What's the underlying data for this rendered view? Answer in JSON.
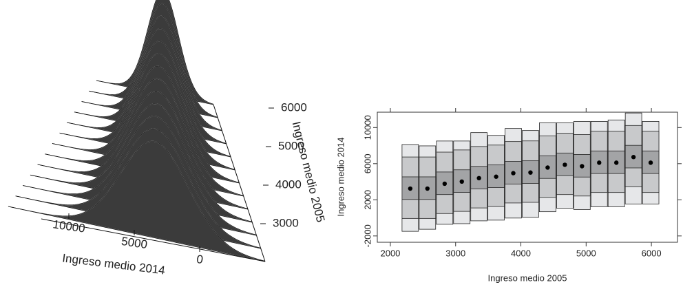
{
  "chart_data": [
    {
      "type": "ridge3d",
      "xlabel": "Ingreso medio 2014",
      "ylabel": "Ingreso medio 2005",
      "xticks": [
        10000,
        5000,
        0
      ],
      "yticks": [
        3000,
        4000,
        5000,
        6000
      ]
    },
    {
      "type": "box",
      "xlabel": "Ingreso medio 2005",
      "ylabel": "Ingreso medio 2014",
      "x": [
        2305,
        2568,
        2832,
        3095,
        3358,
        3621,
        3884,
        4147,
        4410,
        4674,
        4937,
        5200,
        5463,
        5726,
        5989
      ],
      "p01": [
        -1490,
        -1260,
        -710,
        -640,
        -330,
        -250,
        -20,
        60,
        680,
        1070,
        920,
        1230,
        1230,
        1540,
        1540
      ],
      "p10": [
        -60,
        -60,
        480,
        720,
        1100,
        1260,
        1650,
        1720,
        2270,
        2580,
        2420,
        2810,
        2810,
        3430,
        2810
      ],
      "q1": [
        2040,
        2040,
        2580,
        2820,
        3200,
        3360,
        3750,
        3820,
        4370,
        4680,
        4520,
        4910,
        4910,
        5530,
        4910
      ],
      "median": [
        3240,
        3240,
        3780,
        4020,
        4400,
        4560,
        4950,
        5020,
        5570,
        5880,
        5720,
        6110,
        6110,
        6730,
        6110
      ],
      "q3": [
        4540,
        4540,
        5080,
        5320,
        5700,
        5860,
        6250,
        6320,
        6870,
        7180,
        7020,
        7410,
        7410,
        8030,
        7410
      ],
      "p90": [
        6740,
        6740,
        7280,
        7520,
        7900,
        8060,
        8450,
        8520,
        9070,
        9380,
        9220,
        9610,
        9610,
        10230,
        9610
      ],
      "p99": [
        8120,
        7970,
        8510,
        8510,
        9440,
        9130,
        9900,
        9670,
        10530,
        10530,
        10680,
        10680,
        10840,
        11610,
        10680
      ],
      "colors": [
        "#e6e7e9",
        "#c8c9cb",
        "#a3a4a6"
      ],
      "xlim": [
        1800,
        6400
      ],
      "ylim": [
        -2700,
        11700
      ],
      "xticks": [
        2000,
        3000,
        4000,
        5000,
        6000
      ],
      "yticks": [
        -2000,
        2000,
        6000,
        10000
      ]
    }
  ]
}
